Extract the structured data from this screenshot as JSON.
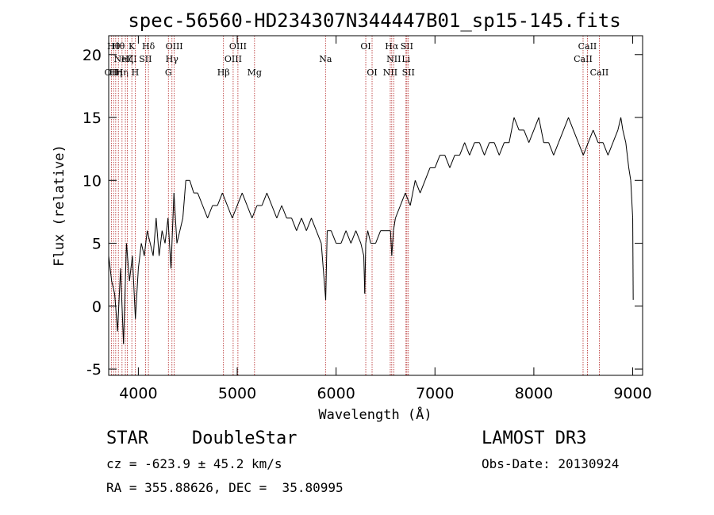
{
  "chart_data": {
    "type": "line",
    "title": "spec-56560-HD234307N344447B01_sp15-145.fits",
    "xlabel": "Wavelength (Å)",
    "ylabel": "Flux (relative)",
    "xlim": [
      3700,
      9100
    ],
    "ylim": [
      -5.5,
      21.5
    ],
    "xticks": [
      4000,
      5000,
      6000,
      7000,
      8000,
      9000
    ],
    "yticks": [
      -5,
      0,
      5,
      10,
      15,
      20
    ],
    "series": [
      {
        "name": "flux",
        "x": [
          3700,
          3730,
          3760,
          3790,
          3820,
          3850,
          3880,
          3910,
          3940,
          3970,
          4000,
          4030,
          4060,
          4090,
          4120,
          4150,
          4180,
          4210,
          4240,
          4270,
          4300,
          4330,
          4360,
          4390,
          4420,
          4450,
          4480,
          4520,
          4560,
          4600,
          4650,
          4700,
          4750,
          4800,
          4850,
          4900,
          4950,
          5000,
          5050,
          5100,
          5150,
          5200,
          5250,
          5300,
          5350,
          5400,
          5450,
          5500,
          5550,
          5600,
          5650,
          5700,
          5750,
          5800,
          5850,
          5880,
          5895,
          5910,
          5950,
          6000,
          6050,
          6100,
          6150,
          6200,
          6250,
          6280,
          6290,
          6300,
          6320,
          6350,
          6400,
          6450,
          6500,
          6550,
          6563,
          6580,
          6600,
          6650,
          6700,
          6750,
          6800,
          6850,
          6900,
          6950,
          7000,
          7050,
          7100,
          7150,
          7200,
          7250,
          7300,
          7350,
          7400,
          7450,
          7500,
          7550,
          7600,
          7650,
          7700,
          7750,
          7800,
          7850,
          7900,
          7950,
          8000,
          8050,
          8100,
          8150,
          8200,
          8250,
          8300,
          8350,
          8400,
          8450,
          8500,
          8550,
          8600,
          8650,
          8700,
          8750,
          8800,
          8850,
          8880,
          8900,
          8930,
          8960,
          8980,
          9000,
          9005
        ],
        "y": [
          4,
          2,
          1,
          -2,
          3,
          -3,
          5,
          2,
          4,
          -1,
          3,
          5,
          4,
          6,
          5,
          4,
          7,
          4,
          6,
          5,
          7,
          3,
          9,
          5,
          6,
          7,
          10,
          10,
          9,
          9,
          8,
          7,
          8,
          8,
          9,
          8,
          7,
          8,
          9,
          8,
          7,
          8,
          8,
          9,
          8,
          7,
          8,
          7,
          7,
          6,
          7,
          6,
          7,
          6,
          5,
          2,
          0.5,
          6,
          6,
          5,
          5,
          6,
          5,
          6,
          5,
          4,
          1,
          5,
          6,
          5,
          5,
          6,
          6,
          6,
          4,
          6,
          7,
          8,
          9,
          8,
          10,
          9,
          10,
          11,
          11,
          12,
          12,
          11,
          12,
          12,
          13,
          12,
          13,
          13,
          12,
          13,
          13,
          12,
          13,
          13,
          15,
          14,
          14,
          13,
          14,
          15,
          13,
          13,
          12,
          13,
          14,
          15,
          14,
          13,
          12,
          13,
          14,
          13,
          13,
          12,
          13,
          14,
          15,
          14,
          13,
          11,
          10,
          7,
          0.5
        ]
      }
    ],
    "lines": [
      {
        "w": 3727,
        "label": "OII",
        "row": 3
      },
      {
        "w": 3750,
        "label": "Hθ",
        "row": 1
      },
      {
        "w": 3771,
        "label": "Hη",
        "row": 3
      },
      {
        "w": 3798,
        "label": "Hθ",
        "row": 1
      },
      {
        "w": 3835,
        "label": "Hη",
        "row": 3
      },
      {
        "w": 3869,
        "label": "NeIII",
        "row": 2
      },
      {
        "w": 3889,
        "label": "Hζ",
        "row": 2
      },
      {
        "w": 3934,
        "label": "K",
        "row": 1
      },
      {
        "w": 3968,
        "label": "H",
        "row": 3
      },
      {
        "w": 4072,
        "label": "SII",
        "row": 2
      },
      {
        "w": 4102,
        "label": "Hδ",
        "row": 1
      },
      {
        "w": 4304,
        "label": "G",
        "row": 3
      },
      {
        "w": 4340,
        "label": "Hγ",
        "row": 2
      },
      {
        "w": 4363,
        "label": "OIII",
        "row": 1
      },
      {
        "w": 4861,
        "label": "Hβ",
        "row": 3
      },
      {
        "w": 4959,
        "label": "OIII",
        "row": 2
      },
      {
        "w": 5007,
        "label": "OIII",
        "row": 1
      },
      {
        "w": 5175,
        "label": "Mg",
        "row": 3
      },
      {
        "w": 5893,
        "label": "Na",
        "row": 2
      },
      {
        "w": 6300,
        "label": "OI",
        "row": 1
      },
      {
        "w": 6364,
        "label": "OI",
        "row": 3
      },
      {
        "w": 6548,
        "label": "NII",
        "row": 3
      },
      {
        "w": 6563,
        "label": "Hα",
        "row": 1
      },
      {
        "w": 6583,
        "label": "NII",
        "row": 2
      },
      {
        "w": 6707,
        "label": "Li",
        "row": 2
      },
      {
        "w": 6716,
        "label": "SII",
        "row": 1
      },
      {
        "w": 6731,
        "label": "SII",
        "row": 3
      },
      {
        "w": 8498,
        "label": "CaII",
        "row": 2
      },
      {
        "w": 8542,
        "label": "CaII",
        "row": 1
      },
      {
        "w": 8662,
        "label": "CaII",
        "row": 3
      }
    ]
  },
  "info": {
    "class": "STAR",
    "subclass": "DoubleStar",
    "survey": "LAMOST DR3",
    "cz": "cz = -623.9 ± 45.2 km/s",
    "obs_date": "Obs-Date: 20130924",
    "coords": "RA = 355.88626, DEC =  35.80995"
  }
}
